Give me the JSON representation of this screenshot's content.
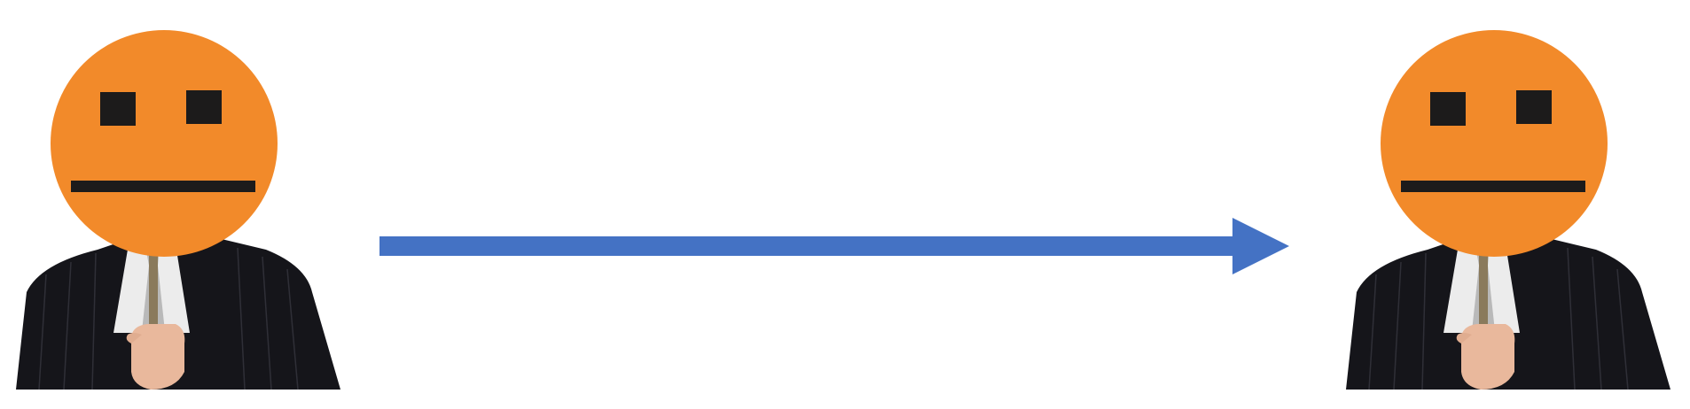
{
  "diagram": {
    "type": "transformation-arrow",
    "figures": [
      {
        "icon": "suit-person-holding-orange-neutral-face-mask",
        "face_color": "#f28a2a",
        "suit_color": "#15151a",
        "features_color": "#1c1b1b"
      },
      {
        "icon": "suit-person-holding-orange-neutral-face-mask",
        "face_color": "#f28a2a",
        "suit_color": "#15151a",
        "features_color": "#1c1b1b"
      }
    ],
    "arrow": {
      "icon": "right-arrow",
      "color": "#4472c4"
    }
  }
}
